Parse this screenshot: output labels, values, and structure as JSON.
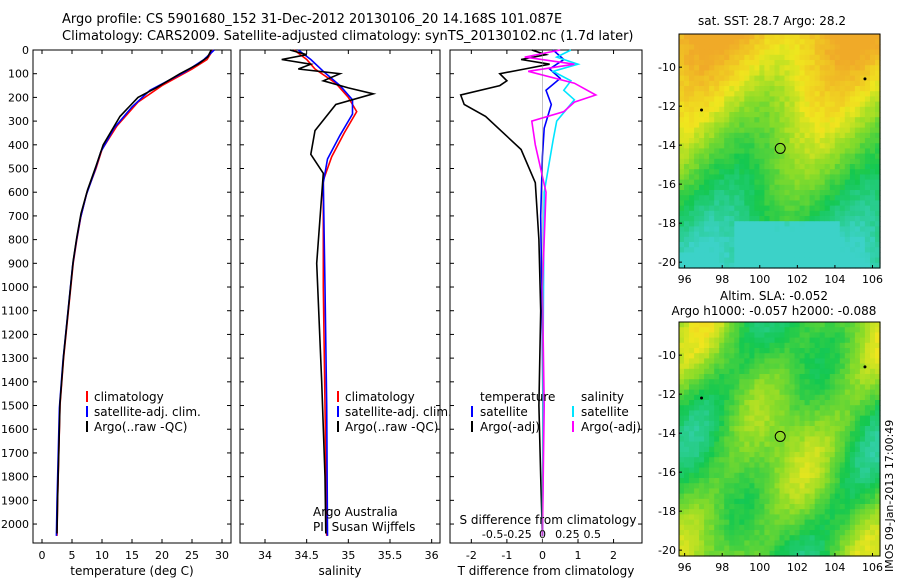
{
  "header": {
    "line1": "Argo profile: CS 5901680_152 31-Dec-2012 20130106_20 14.168S 101.087E",
    "line2": "Climatology: CARS2009. Satellite-adjusted climatology: synTS_20130102.nc (1.7d later)"
  },
  "side_label": "IMOS 09-Jan-2013 17:00:49",
  "colors": {
    "climatology": "#ff0000",
    "satellite": "#0000ff",
    "argo": "#000000",
    "satellite_s": "#00e5ff",
    "argo_s": "#ff00ff"
  },
  "chart_data": [
    {
      "type": "line",
      "name": "temperature-profile",
      "xlabel": "temperature (deg C)",
      "ylabel": "",
      "xlim": [
        -1.5,
        31.5
      ],
      "ylim": [
        2080,
        0
      ],
      "xticks": [
        0,
        5,
        10,
        15,
        20,
        25,
        30
      ],
      "yticks": [
        0,
        100,
        200,
        300,
        400,
        500,
        600,
        700,
        800,
        900,
        1000,
        1100,
        1200,
        1300,
        1400,
        1500,
        1600,
        1700,
        1800,
        1900,
        2000
      ],
      "legend": [
        "climatology",
        "satellite-adj. clim.",
        "Argo(..raw -QC)"
      ],
      "series": [
        {
          "name": "climatology",
          "color": "#ff0000",
          "x": [
            28.5,
            27.5,
            25,
            20,
            16,
            12.5,
            10,
            9,
            7.5,
            6.5,
            5.8,
            5.2,
            4.8,
            4.4,
            4.0,
            3.6,
            3.3,
            3.0,
            2.8,
            2.6,
            2.5
          ],
          "y": [
            0,
            40,
            80,
            150,
            220,
            320,
            420,
            500,
            600,
            700,
            800,
            900,
            1000,
            1100,
            1200,
            1300,
            1400,
            1500,
            1700,
            1900,
            2050
          ]
        },
        {
          "name": "satellite-adj. clim.",
          "color": "#0000ff",
          "x": [
            28.7,
            27,
            24,
            18,
            15,
            12,
            9.8,
            8.8,
            7.4,
            6.4,
            5.7,
            5.1,
            4.7,
            4.3,
            3.9,
            3.5,
            3.2,
            2.9,
            2.7,
            2.5,
            2.4
          ],
          "y": [
            0,
            40,
            90,
            170,
            240,
            330,
            430,
            510,
            610,
            710,
            810,
            910,
            1010,
            1110,
            1210,
            1310,
            1410,
            1510,
            1710,
            1910,
            2050
          ]
        },
        {
          "name": "Argo(..raw -QC)",
          "color": "#000000",
          "x": [
            28.2,
            27.6,
            26,
            23,
            19,
            16,
            13,
            10.2,
            9,
            7.6,
            6.5,
            5.8,
            5.2,
            4.8,
            4.4,
            4.0,
            3.6,
            3.3,
            3.0,
            2.8,
            2.6,
            2.5
          ],
          "y": [
            0,
            30,
            60,
            100,
            160,
            200,
            280,
            400,
            490,
            590,
            690,
            790,
            890,
            990,
            1090,
            1190,
            1290,
            1390,
            1490,
            1690,
            1890,
            2040
          ]
        }
      ]
    },
    {
      "type": "line",
      "name": "salinity-profile",
      "xlabel": "salinity",
      "xlim": [
        33.7,
        36.1
      ],
      "ylim": [
        2080,
        0
      ],
      "xticks": [
        34,
        34.5,
        35,
        35.5,
        36
      ],
      "legend": [
        "climatology",
        "satellite-adj. clim.",
        "Argo(..raw -QC)"
      ],
      "annotation": [
        "Argo Australia",
        "PI: Susan Wijffels"
      ],
      "series": [
        {
          "name": "climatology",
          "color": "#ff0000",
          "x": [
            34.35,
            34.5,
            34.6,
            34.85,
            35.0,
            35.1,
            34.95,
            34.8,
            34.7,
            34.7,
            34.72,
            34.74
          ],
          "y": [
            0,
            40,
            80,
            140,
            200,
            260,
            350,
            450,
            550,
            1000,
            1500,
            2050
          ]
        },
        {
          "name": "satellite-adj. clim.",
          "color": "#0000ff",
          "x": [
            34.4,
            34.55,
            34.7,
            34.9,
            35.05,
            35.05,
            34.9,
            34.75,
            34.7,
            34.72,
            34.74,
            34.75
          ],
          "y": [
            0,
            40,
            90,
            150,
            210,
            270,
            360,
            460,
            560,
            1000,
            1500,
            2050
          ]
        },
        {
          "name": "Argo(..raw -QC)",
          "color": "#000000",
          "x": [
            34.3,
            34.5,
            34.2,
            34.55,
            34.4,
            34.9,
            34.7,
            35.0,
            35.3,
            34.85,
            34.6,
            34.55,
            34.7,
            34.62,
            34.68,
            34.72,
            34.73
          ],
          "y": [
            0,
            20,
            40,
            60,
            80,
            100,
            130,
            160,
            185,
            230,
            340,
            440,
            520,
            900,
            1400,
            1800,
            2040
          ]
        }
      ]
    },
    {
      "type": "line",
      "name": "difference-from-climatology",
      "xlabel": "T difference from climatology",
      "xlabel_top": "S difference from climatology",
      "xlim": [
        -2.6,
        2.8
      ],
      "ylim": [
        2080,
        0
      ],
      "xticks_T": [
        -2,
        -1,
        0,
        1,
        2
      ],
      "xticks_S": [
        "-0.5",
        "-0.25",
        "0",
        "0.25",
        "0.5"
      ],
      "legend_groups": [
        {
          "title": "temperature",
          "items": [
            "satellite",
            "Argo(-adj)"
          ]
        },
        {
          "title": "salinity",
          "items": [
            "satellite",
            "Argo(-adj)"
          ]
        }
      ],
      "series": [
        {
          "name": "satellite",
          "group": "temperature",
          "color": "#0000ff",
          "x": [
            0.3,
            0.6,
            0.2,
            0.5,
            0.1,
            0.25,
            0.05,
            0.0,
            -0.05,
            0.0,
            0.02,
            0.0
          ],
          "y": [
            0,
            40,
            80,
            120,
            170,
            230,
            330,
            450,
            700,
            1200,
            1700,
            2050
          ]
        },
        {
          "name": "Argo(-adj)",
          "group": "temperature",
          "color": "#000000",
          "x": [
            -0.3,
            0.1,
            -0.6,
            0.2,
            -0.5,
            -1.2,
            -1.0,
            -1.2,
            -2.3,
            -2.2,
            -1.6,
            -0.6,
            -0.2,
            -0.1,
            -0.05,
            -0.1,
            -0.05,
            0.0
          ],
          "y": [
            0,
            20,
            40,
            60,
            80,
            100,
            130,
            150,
            190,
            230,
            280,
            420,
            560,
            800,
            1100,
            1500,
            1800,
            2050
          ]
        },
        {
          "name": "satellite",
          "group": "salinity",
          "color": "#00e5ff",
          "x": [
            0.8,
            0.4,
            1.0,
            0.3,
            0.8,
            0.6,
            0.9,
            0.4,
            0.3,
            0.05,
            0.02,
            0.0
          ],
          "y": [
            0,
            30,
            60,
            90,
            130,
            170,
            210,
            300,
            380,
            600,
            1200,
            2050
          ]
        },
        {
          "name": "Argo(-adj)",
          "group": "salinity",
          "color": "#ff00ff",
          "x": [
            0.5,
            -0.5,
            0.9,
            -0.4,
            0.9,
            1.5,
            0.9,
            0.6,
            -0.3,
            -0.2,
            0.1,
            0.0,
            0.05,
            0.0
          ],
          "y": [
            0,
            30,
            60,
            90,
            140,
            190,
            220,
            260,
            300,
            400,
            600,
            1000,
            1500,
            2050
          ]
        }
      ]
    },
    {
      "type": "heatmap",
      "name": "sst-map",
      "title": "sat. SST: 28.7  Argo: 28.2",
      "xlim": [
        95.7,
        106.4
      ],
      "ylim": [
        -20.3,
        -8.3
      ],
      "xticks": [
        96,
        98,
        100,
        102,
        104,
        106
      ],
      "yticks": [
        -10,
        -12,
        -14,
        -16,
        -18,
        -20
      ],
      "argo_position": {
        "lon": 101.087,
        "lat": -14.168
      }
    },
    {
      "type": "heatmap",
      "name": "sla-map",
      "title": [
        "Altim. SLA: -0.052",
        "Argo h1000: -0.057  h2000: -0.088"
      ],
      "xlim": [
        95.7,
        106.4
      ],
      "ylim": [
        -20.3,
        -8.3
      ],
      "xticks": [
        96,
        98,
        100,
        102,
        104,
        106
      ],
      "yticks": [
        -10,
        -12,
        -14,
        -16,
        -18,
        -20
      ],
      "argo_position": {
        "lon": 101.087,
        "lat": -14.168
      }
    }
  ]
}
